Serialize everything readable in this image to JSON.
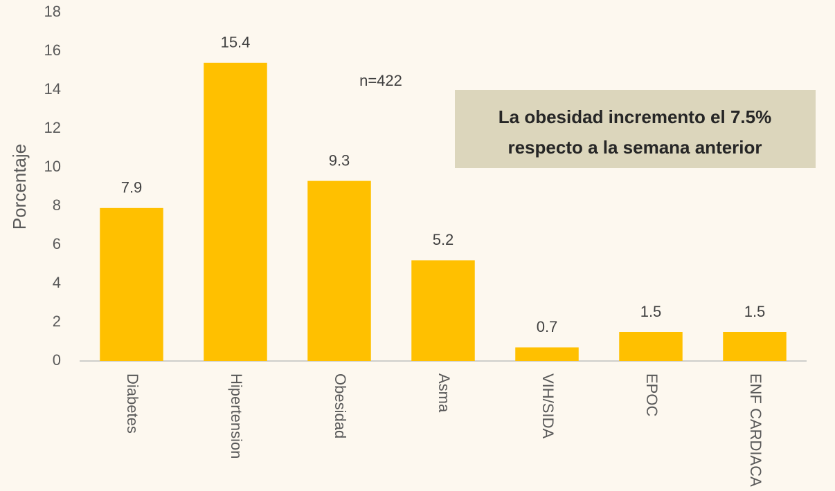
{
  "chart_data": {
    "type": "bar",
    "y_label": "Porcentaje",
    "annotation": "n=422",
    "callout": [
      "La obesidad incremento el 7.5%",
      "respecto a la semana anterior"
    ],
    "categories": [
      "Diabetes",
      "Hipertension",
      "Obesidad",
      "Asma",
      "VIH/SIDA",
      "EPOC",
      "ENF CARDIACA"
    ],
    "values": [
      7.9,
      15.4,
      9.3,
      5.2,
      0.7,
      1.5,
      1.5
    ],
    "color": "#ffc000",
    "ylim": [
      0,
      18
    ],
    "yticks": [
      0,
      2,
      4,
      6,
      8,
      10,
      12,
      14,
      16,
      18
    ],
    "grid": false
  }
}
